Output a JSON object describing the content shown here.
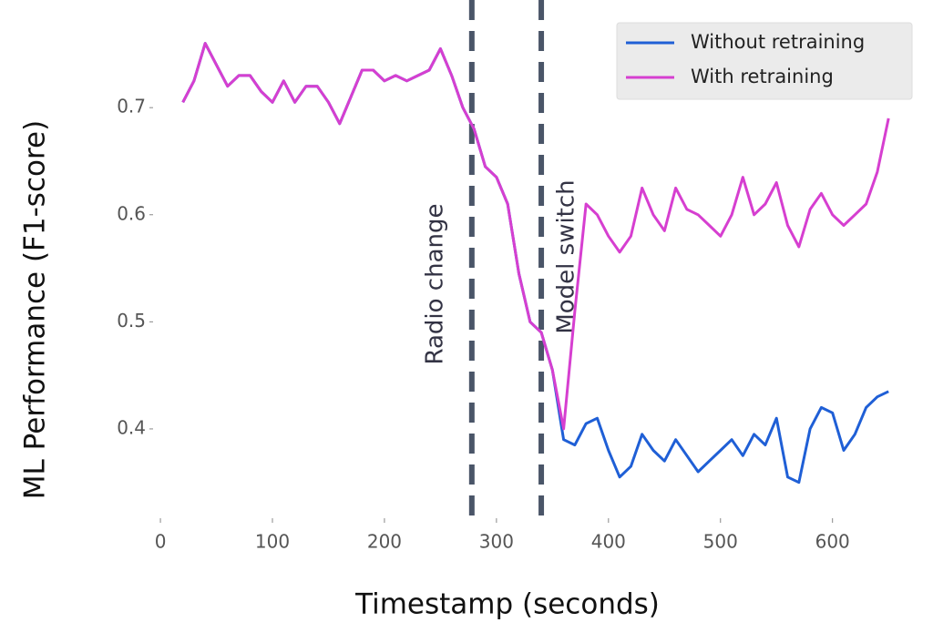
{
  "chart_data": {
    "type": "line",
    "x_label": "Timestamp (seconds)",
    "y_label": "ML Performance (F1-score)",
    "x": [
      20,
      30,
      40,
      50,
      60,
      70,
      80,
      90,
      100,
      110,
      120,
      130,
      140,
      150,
      160,
      170,
      180,
      190,
      200,
      210,
      220,
      230,
      240,
      250,
      260,
      270,
      280,
      290,
      300,
      310,
      320,
      330,
      340,
      350,
      360,
      370,
      380,
      390,
      400,
      410,
      420,
      430,
      440,
      450,
      460,
      470,
      480,
      490,
      500,
      510,
      520,
      530,
      540,
      550,
      560,
      570,
      580,
      590,
      600,
      610,
      620,
      630,
      640,
      650
    ],
    "series": [
      {
        "name": "Without retraining",
        "color": "#1f5fd6",
        "values": [
          0.705,
          0.725,
          0.76,
          0.74,
          0.72,
          0.73,
          0.73,
          0.715,
          0.705,
          0.725,
          0.705,
          0.72,
          0.72,
          0.705,
          0.685,
          0.71,
          0.735,
          0.735,
          0.725,
          0.73,
          0.725,
          0.73,
          0.735,
          0.755,
          0.73,
          0.7,
          0.68,
          0.645,
          0.635,
          0.61,
          0.545,
          0.5,
          0.49,
          0.455,
          0.39,
          0.385,
          0.405,
          0.41,
          0.38,
          0.355,
          0.365,
          0.395,
          0.38,
          0.37,
          0.39,
          0.375,
          0.36,
          0.37,
          0.38,
          0.39,
          0.375,
          0.395,
          0.385,
          0.41,
          0.355,
          0.35,
          0.4,
          0.42,
          0.415,
          0.38,
          0.395,
          0.42,
          0.43,
          0.435
        ]
      },
      {
        "name": "With retraining",
        "color": "#d63fd0",
        "values": [
          0.705,
          0.725,
          0.76,
          0.74,
          0.72,
          0.73,
          0.73,
          0.715,
          0.705,
          0.725,
          0.705,
          0.72,
          0.72,
          0.705,
          0.685,
          0.71,
          0.735,
          0.735,
          0.725,
          0.73,
          0.725,
          0.73,
          0.735,
          0.755,
          0.73,
          0.7,
          0.68,
          0.645,
          0.635,
          0.61,
          0.545,
          0.5,
          0.49,
          0.455,
          0.4,
          0.51,
          0.61,
          0.6,
          0.58,
          0.565,
          0.58,
          0.625,
          0.6,
          0.585,
          0.625,
          0.605,
          0.6,
          0.59,
          0.58,
          0.6,
          0.635,
          0.6,
          0.61,
          0.63,
          0.59,
          0.57,
          0.605,
          0.62,
          0.6,
          0.59,
          0.6,
          0.61,
          0.64,
          0.69
        ]
      }
    ],
    "vlines": [
      {
        "x": 278,
        "label": "Radio change"
      },
      {
        "x": 340,
        "label": "Model switch"
      }
    ],
    "xlim": [
      -9,
      658
    ],
    "xticks": [
      0,
      100,
      200,
      300,
      400,
      500,
      600
    ],
    "ylim": [
      0.32,
      0.775
    ],
    "yticks": [
      0.4,
      0.5,
      0.6,
      0.7
    ],
    "legend": "upper right",
    "grid": false
  }
}
